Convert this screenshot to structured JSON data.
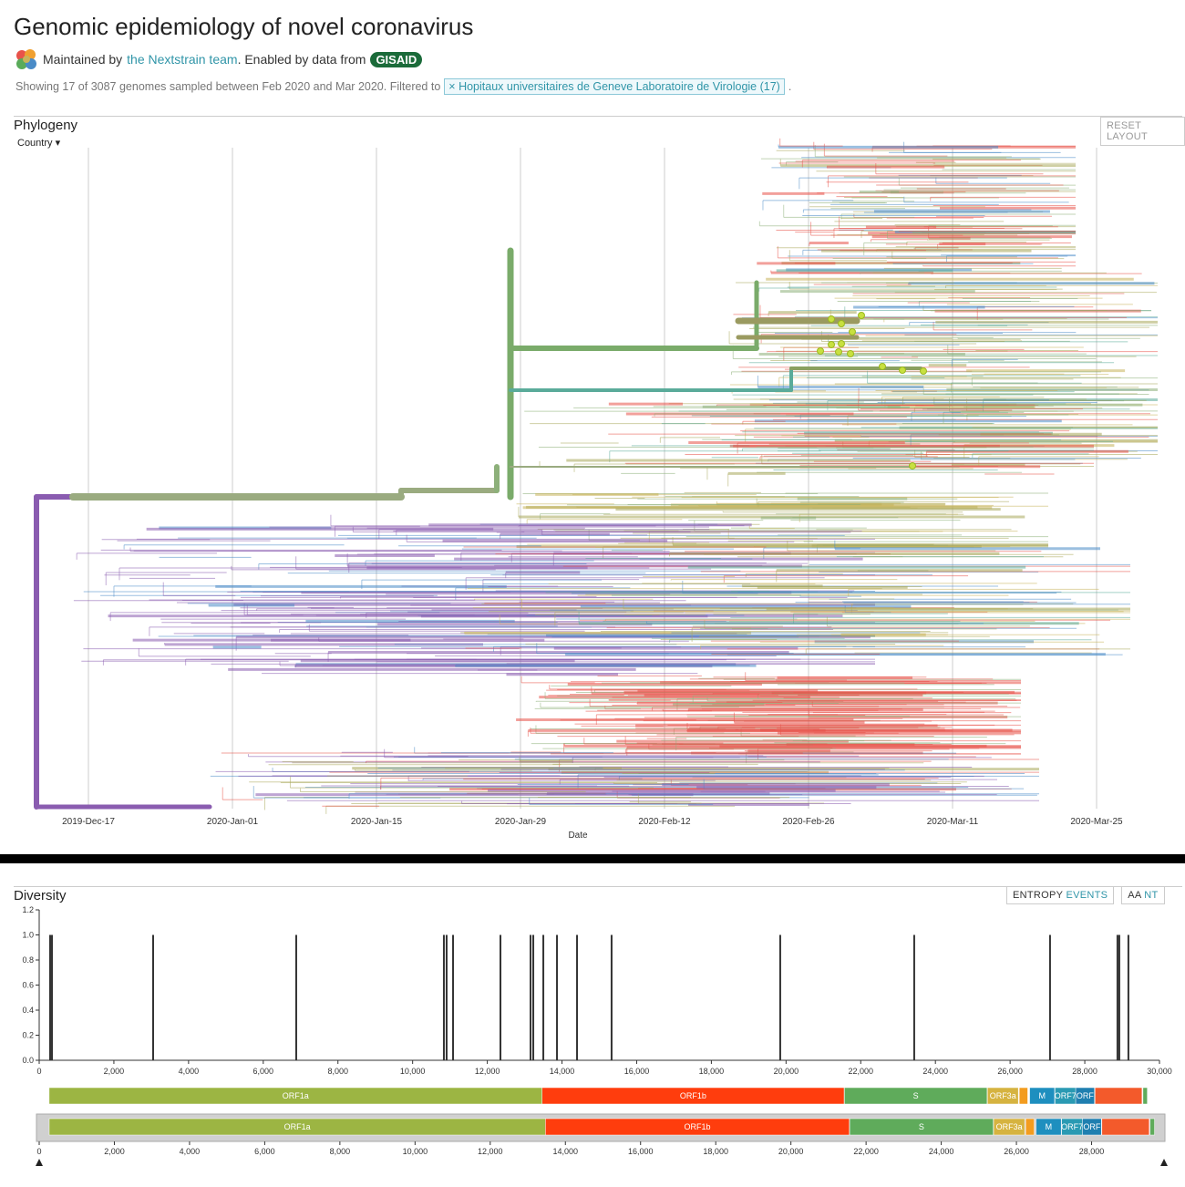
{
  "header": {
    "title": "Genomic epidemiology of novel coronavirus",
    "maintained": "Maintained by",
    "team": "the Nextstrain team",
    "enabled": ". Enabled by data from",
    "gisaid": "GISAID",
    "showing": "Showing 17 of 3087 genomes sampled between Feb 2020 and Mar 2020. Filtered to",
    "filter_x": "×",
    "filter": "Hopitaux universitaires de Geneve Laboratoire de Virologie (17)",
    "end": "."
  },
  "chart_data": [
    {
      "type": "tree",
      "title": "Phylogeny",
      "reset": "RESET LAYOUT",
      "color_by": "Country",
      "categories": [
        "2019-Dec-17",
        "2020-Jan-01",
        "2020-Jan-15",
        "2020-Jan-29",
        "2020-Feb-12",
        "2020-Feb-26",
        "2020-Mar-11",
        "2020-Mar-25"
      ],
      "xlabel": "Date",
      "grid": true
    },
    {
      "type": "bar",
      "title": "Diversity",
      "buttons": [
        "ENTROPY",
        "EVENTS",
        "AA",
        "NT"
      ],
      "color": "#333333",
      "x": [
        293,
        342,
        3051,
        6883,
        10837,
        10910,
        11083,
        12352,
        13158,
        13231,
        13500,
        13866,
        14403,
        15328,
        19844,
        23432,
        27069,
        28875,
        28924,
        29168
      ],
      "values": [
        1,
        1,
        1,
        1,
        1,
        1,
        1,
        1,
        1,
        1,
        1,
        1,
        1,
        1,
        1,
        1,
        1,
        1,
        1,
        1
      ],
      "xlim": [
        0,
        30000
      ],
      "ylim": [
        0,
        1.2
      ],
      "xticks": [
        0,
        {
          "value": 2000,
          "label": "2,000"
        },
        {
          "value": 4000,
          "label": "4,000"
        },
        {
          "value": 6000,
          "label": "6,000"
        },
        {
          "value": 8000,
          "label": "8,000"
        },
        {
          "value": 10000,
          "label": "10,000"
        },
        {
          "value": 12000,
          "label": "12,000"
        },
        {
          "value": 14000,
          "label": "14,000"
        },
        {
          "value": 16000,
          "label": "16,000"
        },
        {
          "value": 18000,
          "label": "18,000"
        },
        {
          "value": 20000,
          "label": "20,000"
        },
        {
          "value": 22000,
          "label": "22,000"
        },
        {
          "value": 24000,
          "label": "24,000"
        },
        {
          "value": 26000,
          "label": "26,000"
        },
        {
          "value": 28000,
          "label": "28,000"
        },
        {
          "value": 30000,
          "label": "30,000"
        }
      ],
      "yticks": [
        {
          "value": 0,
          "label": "0.0"
        },
        {
          "value": 0.2,
          "label": "0.2"
        },
        {
          "value": 0.4,
          "label": "0.4"
        },
        {
          "value": 0.6,
          "label": "0.6"
        },
        {
          "value": 0.8,
          "label": "0.8"
        },
        {
          "value": 1,
          "label": "1.0"
        },
        {
          "value": 1.2,
          "label": "1.2"
        }
      ],
      "genes": [
        {
          "name": "ORF1a",
          "start": 266,
          "end": 13468,
          "color": "#9cb543"
        },
        {
          "name": "ORF1b",
          "start": 13468,
          "end": 21555,
          "color": "#ff3d0d"
        },
        {
          "name": "S",
          "start": 21563,
          "end": 25384,
          "color": "#5fab5b"
        },
        {
          "name": "ORF3a",
          "start": 25393,
          "end": 26220,
          "color": "#d6b340"
        },
        {
          "name": null,
          "start": 26245,
          "end": 26472,
          "color": "#f39c1f"
        },
        {
          "name": "M",
          "start": 26523,
          "end": 27191,
          "color": "#1e8fbf"
        },
        {
          "name": "ORF7",
          "start": 27202,
          "end": 27759,
          "color": "#2a9ab3"
        },
        {
          "name": "ORF",
          "start": 27756,
          "end": 28259,
          "color": "#1f7fb0"
        },
        {
          "name": null,
          "start": 28274,
          "end": 29533,
          "color": "#f35a2b"
        },
        {
          "name": null,
          "start": 29558,
          "end": 29674,
          "color": "#5fab5b"
        }
      ],
      "nav_xlim": [
        0,
        29903
      ],
      "nav_xticks": [
        0,
        {
          "value": 2000,
          "label": "2,000"
        },
        {
          "value": 4000,
          "label": "4,000"
        },
        {
          "value": 6000,
          "label": "6,000"
        },
        {
          "value": 8000,
          "label": "8,000"
        },
        {
          "value": 10000,
          "label": "10,000"
        },
        {
          "value": 12000,
          "label": "12,000"
        },
        {
          "value": 14000,
          "label": "14,000"
        },
        {
          "value": 16000,
          "label": "16,000"
        },
        {
          "value": 18000,
          "label": "18,000"
        },
        {
          "value": 20000,
          "label": "20,000"
        },
        {
          "value": 22000,
          "label": "22,000"
        },
        {
          "value": 24000,
          "label": "24,000"
        },
        {
          "value": 26000,
          "label": "26,000"
        },
        {
          "value": 28000,
          "label": "28,000"
        }
      ]
    }
  ]
}
